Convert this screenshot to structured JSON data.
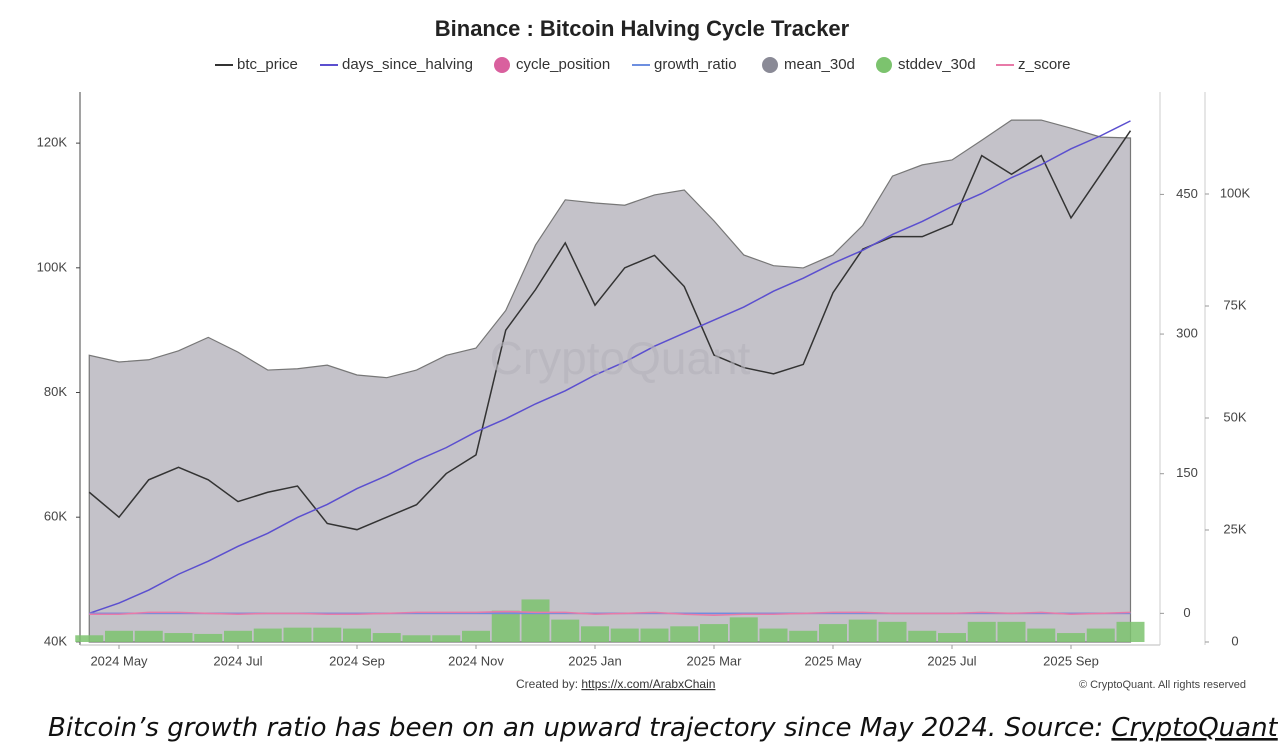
{
  "chart_data": {
    "type": "line",
    "title": "Binance : Bitcoin Halving Cycle Tracker",
    "watermark": "CryptoQuant",
    "credit": "Created by: ",
    "credit_link": "https://x.com/ArabxChain",
    "copyright": "© CryptoQuant. All rights reserved",
    "caption": "Bitcoin’s growth ratio has been on an upward trajectory since May 2024. Source: ",
    "caption_link": "CryptoQuant",
    "categories": [
      null,
      "2024 May",
      null,
      null,
      null,
      "2024 Jul",
      null,
      null,
      null,
      "2024 Sep",
      null,
      null,
      null,
      "2024 Nov",
      null,
      null,
      null,
      "2025 Jan",
      null,
      null,
      null,
      "2025 Mar",
      null,
      null,
      null,
      "2025 May",
      null,
      null,
      null,
      "2025 Jul",
      null,
      null,
      null,
      "2025 Sep",
      null,
      null
    ],
    "ylim": [
      39500,
      128200
    ],
    "yticks": [
      {
        "value": 40000,
        "label": "40K"
      },
      {
        "value": 60000,
        "label": "60K"
      },
      {
        "value": 80000,
        "label": "80K"
      },
      {
        "value": 100000,
        "label": "100K"
      },
      {
        "value": 120000,
        "label": "120K"
      }
    ],
    "y2lim": [
      -34,
      560
    ],
    "y2ticks": [
      0,
      150,
      300,
      450
    ],
    "y3lim": [
      -670,
      122770
    ],
    "y3ticks": [
      0,
      {
        "value": 25000,
        "label": "25K"
      },
      {
        "value": 50000,
        "label": "50K"
      },
      {
        "value": 75000,
        "label": "75K"
      },
      {
        "value": 100000,
        "label": "100K"
      }
    ],
    "series": [
      {
        "name": "btc_price",
        "color": "#333333",
        "axis": "y",
        "style": "line",
        "legend_symbol": "line",
        "values": [
          64000,
          60000,
          66000,
          68000,
          66000,
          62500,
          64000,
          65000,
          59000,
          58000,
          60000,
          62000,
          67000,
          70000,
          90000,
          96500,
          104000,
          94000,
          100000,
          102000,
          97000,
          86000,
          84000,
          83000,
          84500,
          96000,
          103000,
          105000,
          105000,
          107000,
          118000,
          115000,
          118000,
          108000,
          115000,
          122000
        ]
      },
      {
        "name": "days_since_halving",
        "color": "#5b4fcf",
        "axis": "y2",
        "style": "line",
        "legend_symbol": "line",
        "values": [
          0,
          11,
          25,
          42,
          56,
          72,
          86,
          103,
          117,
          134,
          148,
          164,
          178,
          195,
          209,
          225,
          239,
          256,
          270,
          287,
          301,
          315,
          329,
          346,
          360,
          376,
          390,
          407,
          421,
          437,
          451,
          468,
          482,
          499,
          513,
          529
        ]
      },
      {
        "name": "cycle_position",
        "color": "#d9609e",
        "axis": "y2",
        "style": "line",
        "legend_symbol": "circle",
        "values": [
          0,
          0,
          0,
          0,
          0,
          0,
          0,
          0,
          0,
          0,
          0,
          0,
          0,
          0,
          0,
          0,
          0,
          0,
          0,
          0,
          0,
          0,
          0,
          0,
          0,
          0,
          0,
          0,
          0,
          0,
          0,
          0,
          0,
          0,
          0,
          0
        ]
      },
      {
        "name": "growth_ratio",
        "color": "#6d8fe0",
        "axis": "y2",
        "style": "line",
        "legend_symbol": "line",
        "values": [
          0,
          0,
          0,
          0,
          0,
          0,
          0,
          0,
          0,
          0,
          0,
          0,
          0,
          0,
          0,
          0,
          0,
          0,
          0,
          0,
          0,
          0,
          0,
          0,
          0,
          0,
          0,
          0,
          0,
          0,
          0,
          0,
          0,
          0,
          0,
          0
        ]
      },
      {
        "name": "mean_30d",
        "color": "#8a8a96",
        "axis": "y3",
        "style": "area",
        "legend_symbol": "circle",
        "values": [
          64000,
          62500,
          63000,
          65000,
          68000,
          64700,
          60700,
          61000,
          61800,
          59600,
          59000,
          60700,
          64000,
          65600,
          74000,
          88600,
          98700,
          98000,
          97500,
          99800,
          100900,
          94000,
          86400,
          84000,
          83500,
          86400,
          93000,
          104000,
          106500,
          107600,
          112000,
          116500,
          116500,
          114700,
          112700,
          112500
        ]
      },
      {
        "name": "stddev_30d",
        "color": "#7cc36e",
        "axis": "y3",
        "style": "bar",
        "legend_symbol": "circle",
        "values": [
          1500,
          2500,
          2500,
          2000,
          1800,
          2500,
          3000,
          3200,
          3200,
          3000,
          2000,
          1500,
          1500,
          2500,
          7000,
          9500,
          5000,
          3500,
          3000,
          3000,
          3500,
          4000,
          5500,
          3000,
          2500,
          4000,
          5000,
          4500,
          2500,
          2000,
          4500,
          4500,
          3000,
          2000,
          3000,
          4500
        ]
      },
      {
        "name": "z_score",
        "color": "#e87aa8",
        "axis": "y2",
        "style": "line",
        "legend_symbol": "line",
        "values": [
          -1,
          -1,
          1,
          1,
          0,
          -1,
          0,
          0,
          -1,
          -1,
          0,
          1,
          1,
          1,
          2,
          1,
          1,
          -1,
          0,
          1,
          -1,
          -2,
          -1,
          -1,
          0,
          1,
          1,
          0,
          0,
          0,
          1,
          0,
          1,
          -1,
          0,
          1
        ]
      }
    ]
  }
}
